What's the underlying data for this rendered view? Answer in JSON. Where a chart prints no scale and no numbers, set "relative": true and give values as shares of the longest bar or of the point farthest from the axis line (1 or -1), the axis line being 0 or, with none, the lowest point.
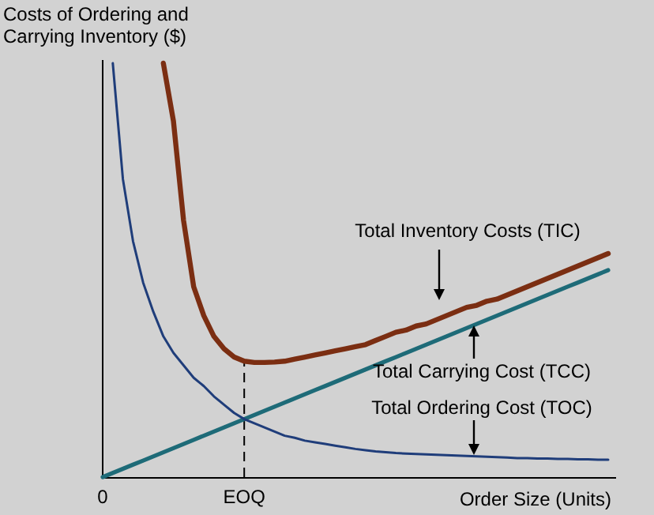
{
  "chart_data": {
    "type": "line",
    "relative": true,
    "ylabel": "Costs of Ordering and\nCarrying Inventory ($)",
    "xlabel": "Order Size (Units)",
    "categories": [
      "0",
      null,
      null,
      null,
      null,
      null,
      null,
      null,
      null,
      null,
      null,
      null,
      null,
      null,
      "EOQ",
      null,
      null,
      null,
      null,
      null,
      null,
      null,
      null,
      null,
      null,
      null,
      null,
      null,
      null,
      null,
      null,
      null,
      null,
      null,
      null,
      null,
      null,
      null,
      null,
      null,
      null,
      null,
      null,
      null,
      null,
      null,
      null,
      null,
      null,
      null,
      null
    ],
    "series": [
      {
        "color": "#7b2e12",
        "values": [
          null,
          null,
          null,
          null,
          null,
          null,
          1.0,
          0.86,
          0.62,
          0.46,
          0.39,
          0.34,
          0.31,
          0.29,
          0.28,
          0.277,
          0.277,
          0.278,
          0.28,
          0.285,
          0.29,
          0.295,
          0.3,
          0.305,
          0.31,
          0.315,
          0.32,
          0.33,
          0.34,
          0.35,
          0.355,
          0.365,
          0.37,
          0.38,
          0.39,
          0.4,
          0.41,
          0.415,
          0.425,
          0.43,
          0.44,
          0.45,
          0.46,
          0.47,
          0.48,
          0.49,
          0.5,
          0.51,
          0.52,
          0.53,
          0.54
        ]
      },
      {
        "color": "#1e6b78",
        "values": [
          0,
          0.01,
          0.02,
          0.03,
          0.04,
          0.05,
          0.06,
          0.07,
          0.08,
          0.09,
          0.1,
          0.11,
          0.12,
          0.13,
          0.14,
          0.15,
          0.16,
          0.17,
          0.18,
          0.19,
          0.2,
          0.21,
          0.22,
          0.23,
          0.24,
          0.25,
          0.26,
          0.27,
          0.28,
          0.29,
          0.3,
          0.31,
          0.32,
          0.33,
          0.34,
          0.35,
          0.36,
          0.37,
          0.38,
          0.39,
          0.4,
          0.41,
          0.42,
          0.43,
          0.44,
          0.45,
          0.46,
          0.47,
          0.48,
          0.49,
          0.5
        ]
      },
      {
        "color": "#1f3d7a",
        "values": [
          null,
          1.0,
          0.72,
          0.57,
          0.47,
          0.4,
          0.34,
          0.3,
          0.27,
          0.24,
          0.22,
          0.195,
          0.175,
          0.155,
          0.14,
          0.13,
          0.12,
          0.11,
          0.1,
          0.095,
          0.088,
          0.084,
          0.08,
          0.076,
          0.072,
          0.068,
          0.065,
          0.062,
          0.06,
          0.058,
          0.057,
          0.056,
          0.055,
          0.054,
          0.053,
          0.052,
          0.051,
          0.05,
          0.049,
          0.048,
          0.047,
          0.046,
          0.046,
          0.045,
          0.045,
          0.044,
          0.044,
          0.043,
          0.043,
          0.042,
          0.042
        ]
      }
    ],
    "ref_lines": [
      {
        "axis": "x",
        "value": "EOQ",
        "line_style": "dashed"
      }
    ],
    "annotations": [
      "Total Inventory Costs (TIC)",
      "Total Carrying Cost (TCC)",
      "Total Ordering Cost (TOC)"
    ]
  }
}
